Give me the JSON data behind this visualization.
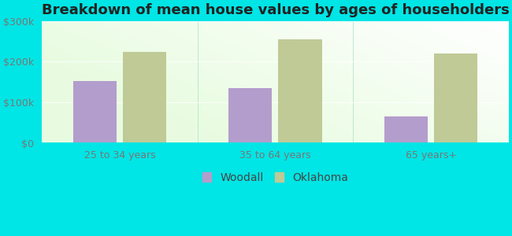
{
  "title": "Breakdown of mean house values by ages of householders",
  "categories": [
    "25 to 34 years",
    "35 to 64 years",
    "65 years+"
  ],
  "woodall_values": [
    152000,
    135000,
    65000
  ],
  "oklahoma_values": [
    223000,
    255000,
    220000
  ],
  "woodall_color": "#b39dcc",
  "oklahoma_color": "#bfca96",
  "ylim": [
    0,
    300000
  ],
  "yticks": [
    0,
    100000,
    200000,
    300000
  ],
  "ytick_labels": [
    "$0",
    "$100k",
    "$200k",
    "$300k"
  ],
  "background_color": "#00e5e5",
  "legend_labels": [
    "Woodall",
    "Oklahoma"
  ],
  "title_fontsize": 13,
  "tick_fontsize": 9,
  "legend_fontsize": 10,
  "bar_width": 0.28,
  "group_positions": [
    0.5,
    1.5,
    2.5
  ],
  "xlim": [
    0,
    3.0
  ]
}
